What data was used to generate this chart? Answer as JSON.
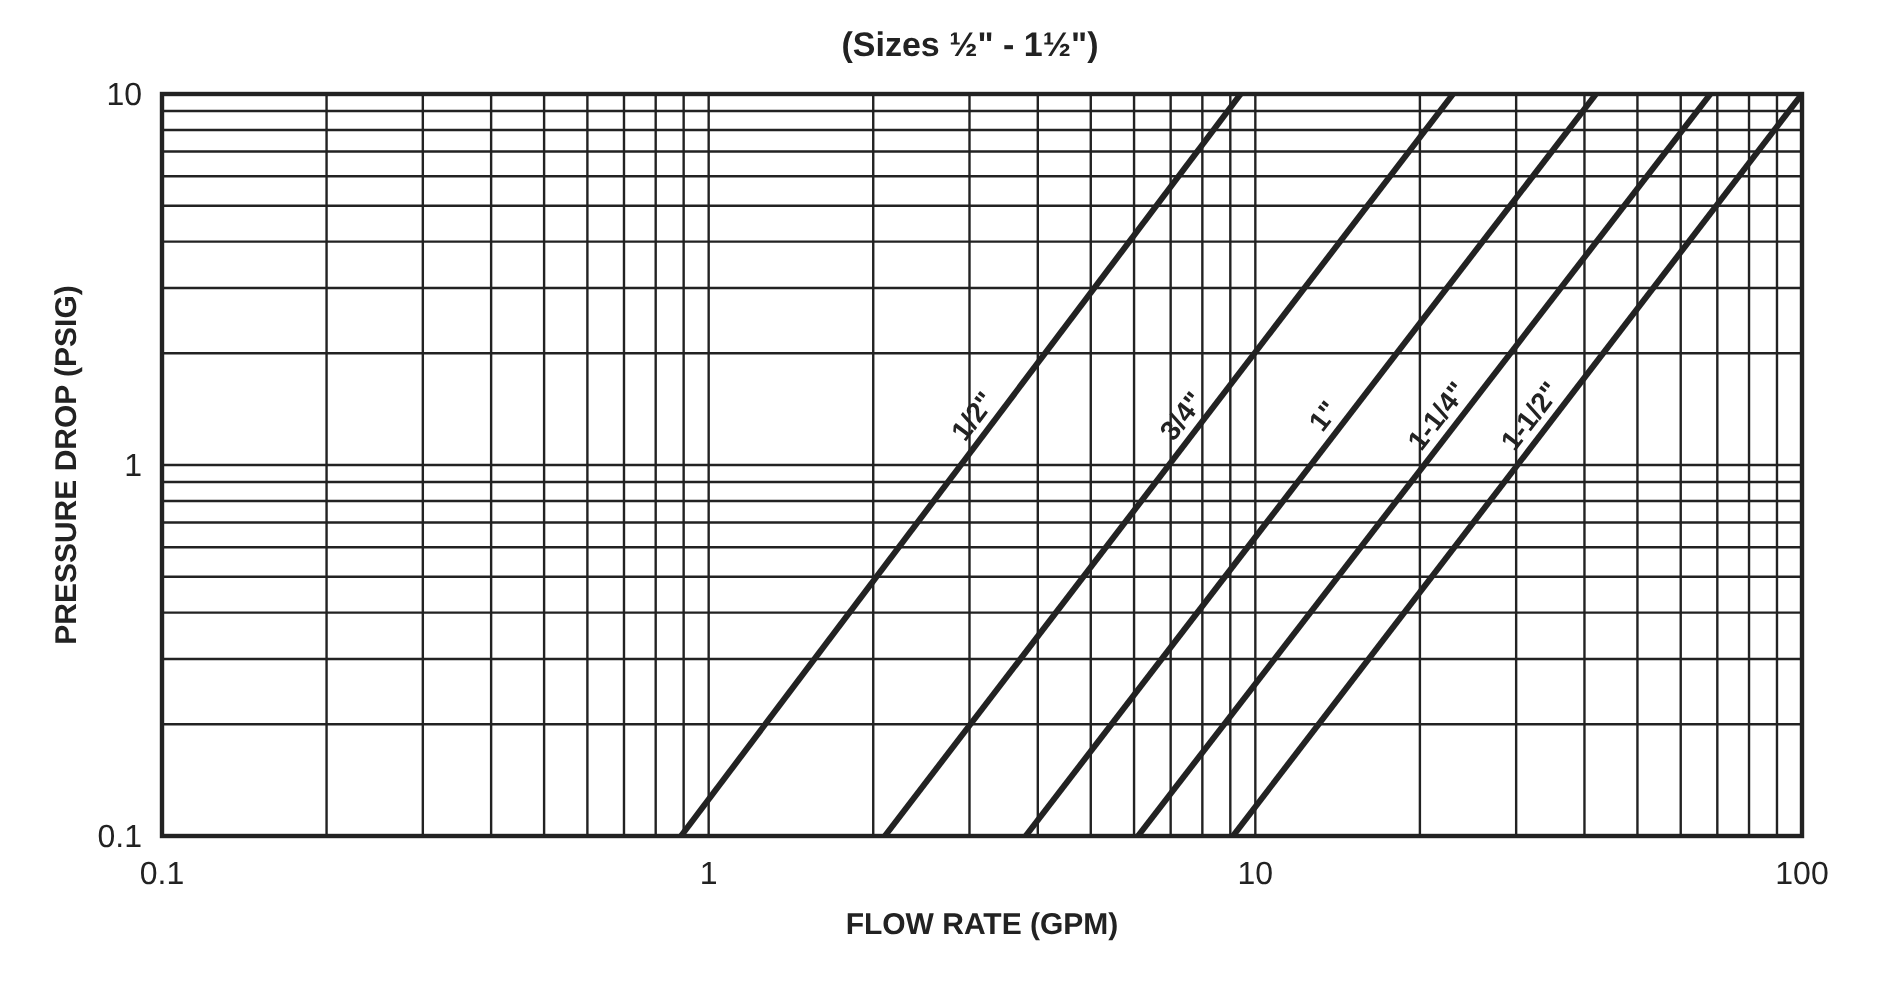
{
  "chart_data": {
    "type": "line",
    "title": "(Sizes ½\" - 1½\")",
    "xlabel": "FLOW RATE (GPM)",
    "ylabel": "PRESSURE DROP (PSIG)",
    "log": "xy",
    "grid": true,
    "xlim": [
      0.1,
      100
    ],
    "ylim": [
      0.1,
      10
    ],
    "xticks": [
      0.1,
      {
        "value": 0.2,
        "label": null
      },
      {
        "value": 0.3,
        "label": null
      },
      {
        "value": 0.4,
        "label": null
      },
      {
        "value": 0.5,
        "label": null
      },
      {
        "value": 0.6,
        "label": null
      },
      {
        "value": 0.7,
        "label": null
      },
      {
        "value": 0.8,
        "label": null
      },
      {
        "value": 0.9,
        "label": null
      },
      1,
      {
        "value": 2,
        "label": null
      },
      {
        "value": 3,
        "label": null
      },
      {
        "value": 4,
        "label": null
      },
      {
        "value": 5,
        "label": null
      },
      {
        "value": 6,
        "label": null
      },
      {
        "value": 7,
        "label": null
      },
      {
        "value": 8,
        "label": null
      },
      {
        "value": 9,
        "label": null
      },
      10,
      {
        "value": 20,
        "label": null
      },
      {
        "value": 30,
        "label": null
      },
      {
        "value": 40,
        "label": null
      },
      {
        "value": 50,
        "label": null
      },
      {
        "value": 60,
        "label": null
      },
      {
        "value": 70,
        "label": null
      },
      {
        "value": 80,
        "label": null
      },
      {
        "value": 90,
        "label": null
      },
      100
    ],
    "yticks": [
      0.1,
      {
        "value": 0.2,
        "label": null
      },
      {
        "value": 0.3,
        "label": null
      },
      {
        "value": 0.4,
        "label": null
      },
      {
        "value": 0.5,
        "label": null
      },
      {
        "value": 0.6,
        "label": null
      },
      {
        "value": 0.7,
        "label": null
      },
      {
        "value": 0.8,
        "label": null
      },
      {
        "value": 0.9,
        "label": null
      },
      1,
      {
        "value": 2,
        "label": null
      },
      {
        "value": 3,
        "label": null
      },
      {
        "value": 4,
        "label": null
      },
      {
        "value": 5,
        "label": null
      },
      {
        "value": 6,
        "label": null
      },
      {
        "value": 7,
        "label": null
      },
      {
        "value": 8,
        "label": null
      },
      {
        "value": 9,
        "label": null
      },
      10
    ],
    "series": [
      {
        "name": "1/2\"",
        "color": "#222222",
        "x": [
          0.89,
          9.4
        ],
        "values": [
          0.1,
          10
        ]
      },
      {
        "name": "3/4\"",
        "color": "#222222",
        "x": [
          2.1,
          23
        ],
        "values": [
          0.1,
          10
        ]
      },
      {
        "name": "1\"",
        "color": "#222222",
        "x": [
          3.8,
          42
        ],
        "values": [
          0.1,
          10
        ]
      },
      {
        "name": "1-1/4\"",
        "color": "#222222",
        "x": [
          6.1,
          68
        ],
        "values": [
          0.1,
          10
        ]
      },
      {
        "name": "1-1/2\"",
        "color": "#222222",
        "x": [
          9.1,
          100
        ],
        "values": [
          0.1,
          10
        ]
      }
    ]
  }
}
